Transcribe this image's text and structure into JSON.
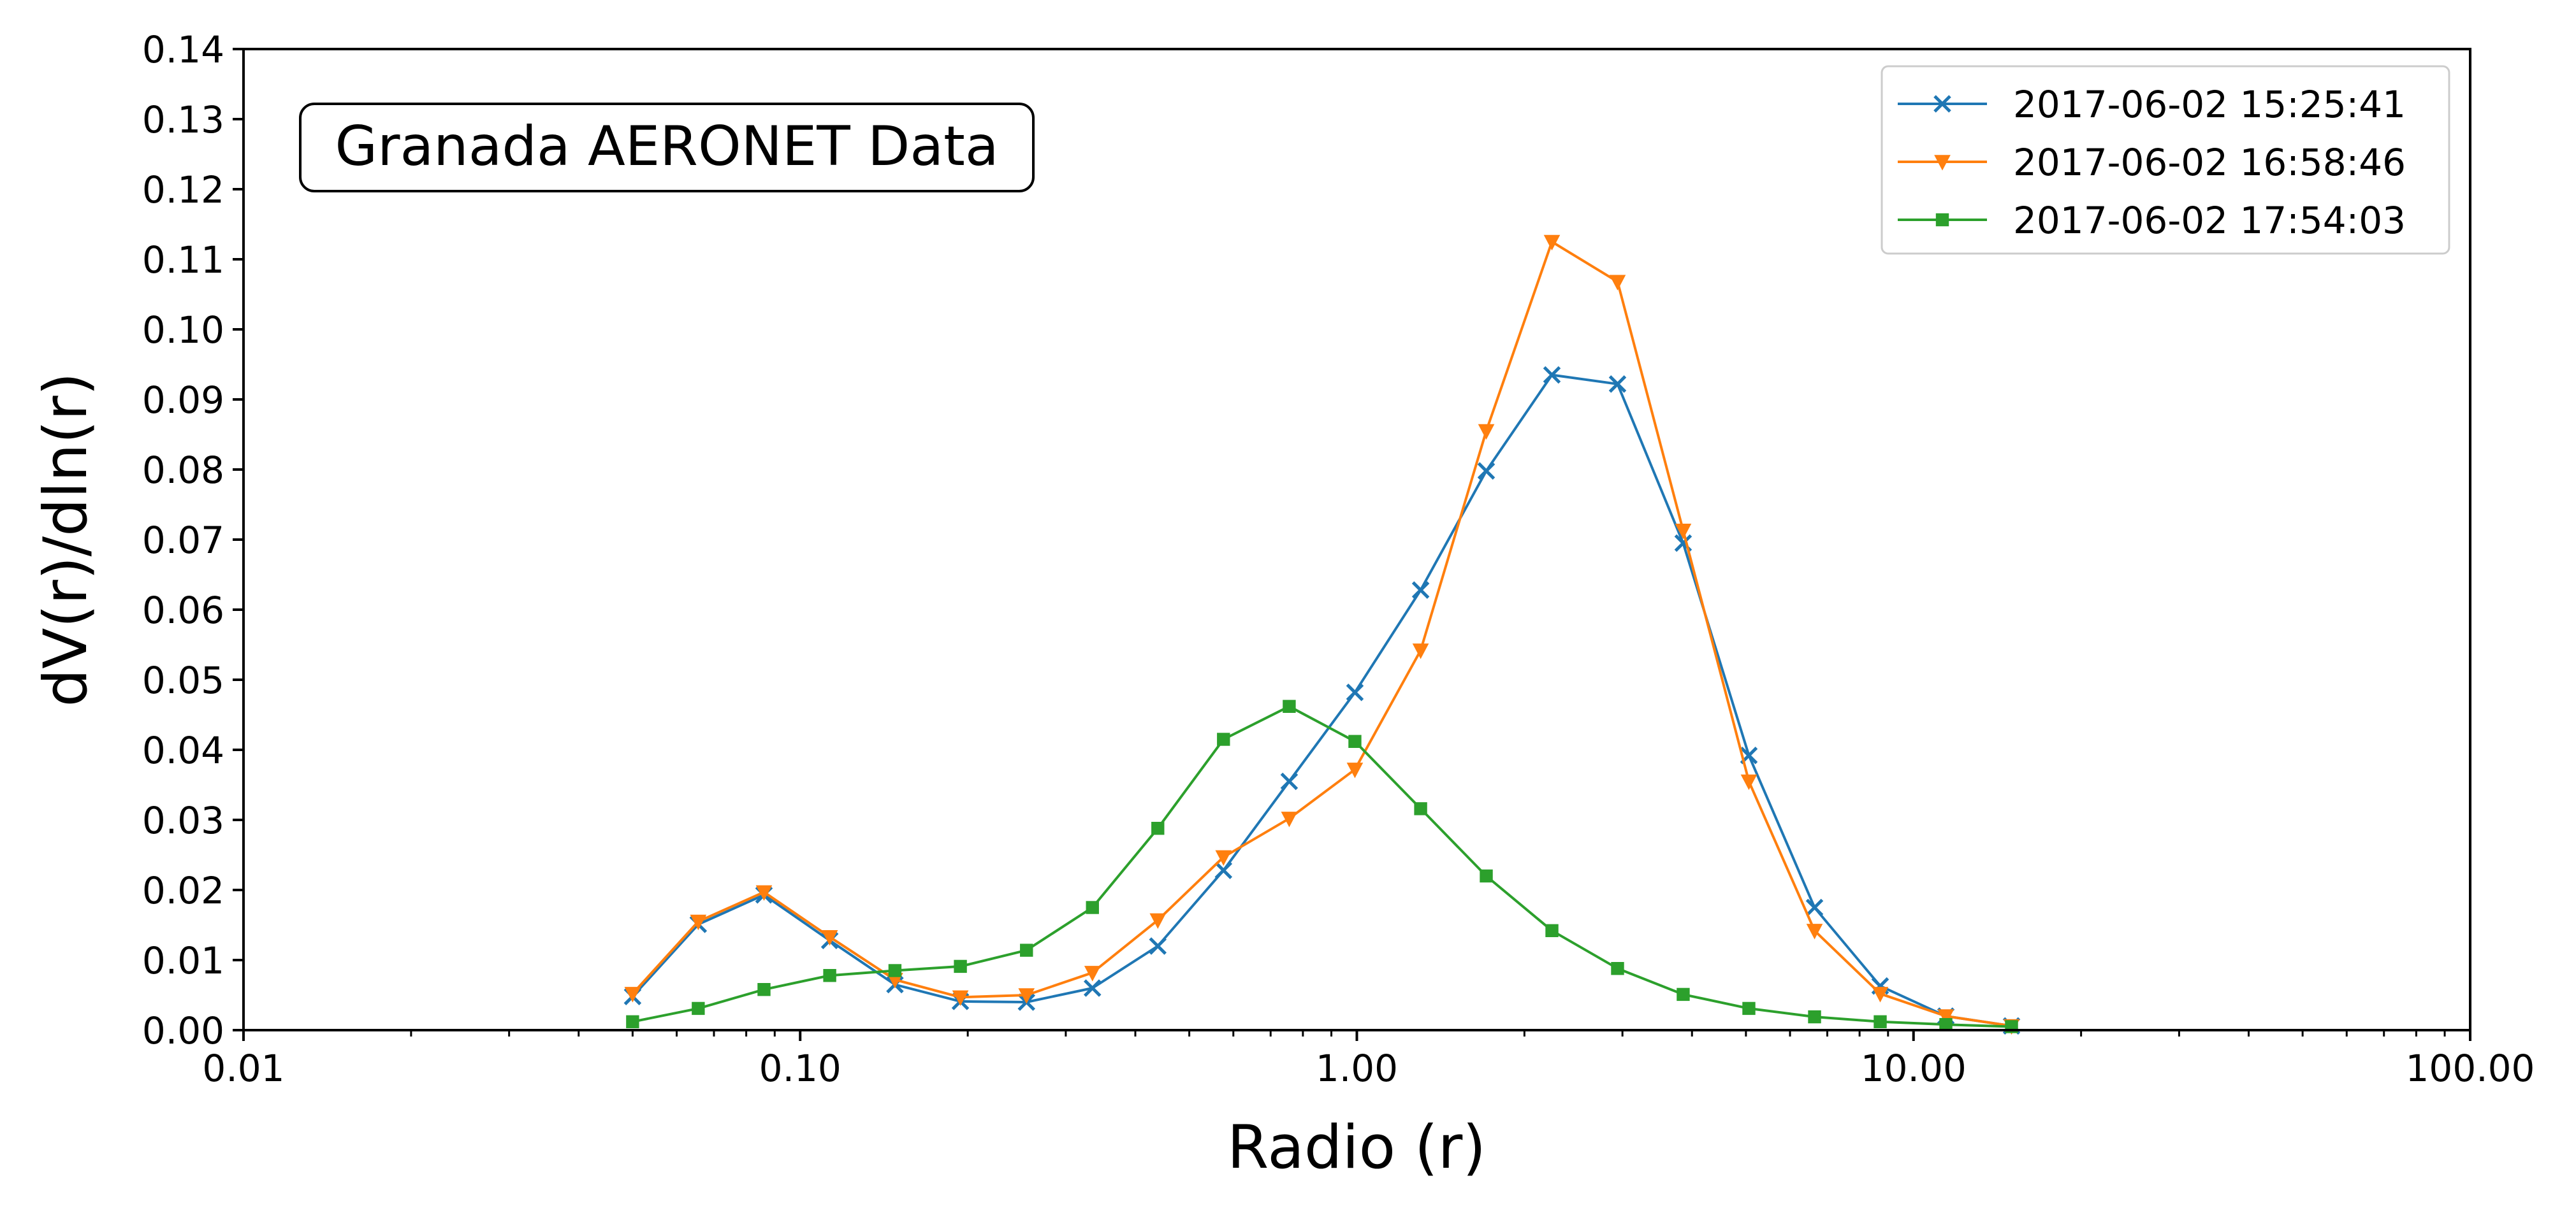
{
  "chart_data": {
    "type": "line",
    "title": "",
    "xlabel": "Radio (r)",
    "ylabel": "dV(r)/dln(r)",
    "xscale": "log",
    "xlim": [
      0.01,
      100.0
    ],
    "ylim": [
      0.0,
      0.14
    ],
    "grid": false,
    "legend_position": "top-right",
    "annotation": "Granada AERONET Data",
    "x_ticks": [
      "0.01",
      "0.10",
      "1.00",
      "10.00",
      "100.00"
    ],
    "y_ticks": [
      "0.00",
      "0.01",
      "0.02",
      "0.03",
      "0.04",
      "0.05",
      "0.06",
      "0.07",
      "0.08",
      "0.09",
      "0.10",
      "0.11",
      "0.12",
      "0.13",
      "0.14"
    ],
    "x": [
      0.05,
      0.0656,
      0.0861,
      0.113,
      0.148,
      0.194,
      0.255,
      0.335,
      0.439,
      0.576,
      0.756,
      0.992,
      1.302,
      1.708,
      2.241,
      2.94,
      3.857,
      5.061,
      6.641,
      8.713,
      11.432,
      15.0
    ],
    "series": [
      {
        "name": "2017-06-02 15:25:41",
        "color": "#1f77b4",
        "marker": "x",
        "values": [
          0.0048,
          0.0151,
          0.0193,
          0.0128,
          0.0065,
          0.0041,
          0.004,
          0.006,
          0.012,
          0.0228,
          0.0355,
          0.0482,
          0.0628,
          0.0798,
          0.0935,
          0.0922,
          0.0695,
          0.0392,
          0.0175,
          0.0063,
          0.002,
          0.0006
        ]
      },
      {
        "name": "2017-06-02 16:58:46",
        "color": "#ff7f0e",
        "marker": "triangle-down",
        "values": [
          0.0052,
          0.0155,
          0.0197,
          0.0133,
          0.0072,
          0.0047,
          0.005,
          0.0082,
          0.0157,
          0.0247,
          0.0302,
          0.0372,
          0.0542,
          0.0855,
          0.1125,
          0.1068,
          0.0713,
          0.0355,
          0.0142,
          0.0052,
          0.002,
          0.0006
        ]
      },
      {
        "name": "2017-06-02 17:54:03",
        "color": "#2ca02c",
        "marker": "square",
        "values": [
          0.0012,
          0.0031,
          0.0058,
          0.0078,
          0.0085,
          0.0091,
          0.0114,
          0.0175,
          0.0288,
          0.0415,
          0.0462,
          0.0412,
          0.0316,
          0.022,
          0.0142,
          0.0088,
          0.0051,
          0.0031,
          0.0019,
          0.0012,
          0.0008,
          0.0005
        ]
      }
    ]
  }
}
